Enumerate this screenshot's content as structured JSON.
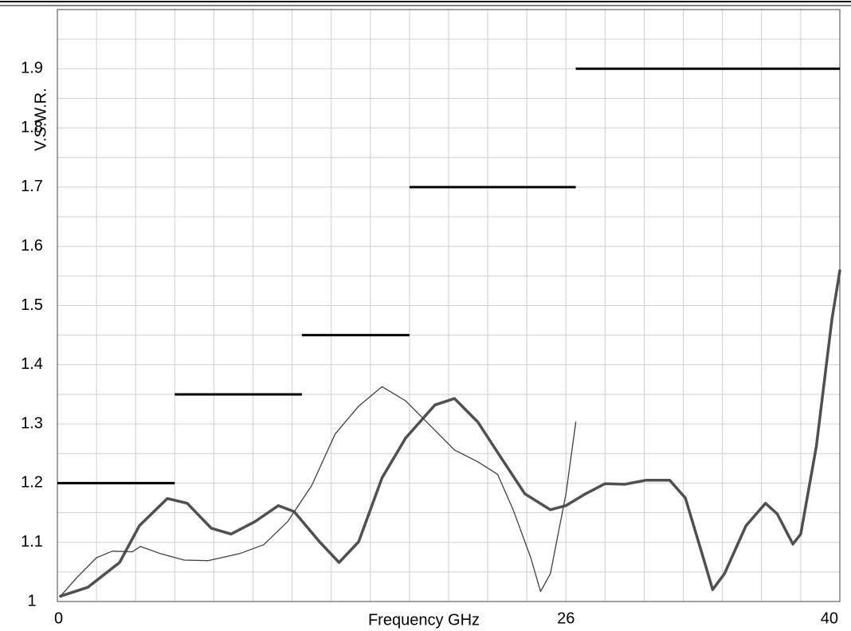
{
  "chart_data": {
    "type": "line",
    "x_label": "Frequency GHz",
    "y_label": "V.S.W.R.",
    "xlim": [
      0,
      40
    ],
    "xticks": [
      0,
      26,
      40
    ],
    "ylim": [
      1,
      2
    ],
    "yticks": [
      1,
      1.1,
      1.2,
      1.3,
      1.4,
      1.5,
      1.6,
      1.7,
      1.8,
      1.9
    ],
    "grid": true,
    "x_grid_step": 2,
    "y_grid_step": 0.05,
    "series": [
      {
        "color": "#505050",
        "width": 3.5,
        "x": [
          0.16,
          1.55,
          3.18,
          4.19,
          5.62,
          6.64,
          7.86,
          8.88,
          10.1,
          11.3,
          12.1,
          13.4,
          14.4,
          15.4,
          16.6,
          17.8,
          19.3,
          20.3,
          21.5,
          22.7,
          23.9,
          25.2,
          26.0,
          27.0,
          28.0,
          29.0,
          30.1,
          31.3,
          32.1,
          32.9,
          33.5,
          34.1,
          35.2,
          36.2,
          36.8,
          37.6,
          38.0,
          38.8,
          39.6,
          40
        ],
        "values": [
          1.009,
          1.024,
          1.066,
          1.128,
          1.174,
          1.166,
          1.124,
          1.114,
          1.135,
          1.162,
          1.152,
          1.101,
          1.066,
          1.101,
          1.209,
          1.276,
          1.332,
          1.343,
          1.303,
          1.242,
          1.182,
          1.155,
          1.162,
          1.182,
          1.199,
          1.198,
          1.205,
          1.205,
          1.175,
          1.087,
          1.02,
          1.047,
          1.128,
          1.166,
          1.148,
          1.097,
          1.114,
          1.262,
          1.478,
          1.559
        ]
      },
      {
        "color": "#404040",
        "width": 1.3,
        "x": [
          0.16,
          0.98,
          2.0,
          2.81,
          3.83,
          4.24,
          5.26,
          6.48,
          7.7,
          9.33,
          10.55,
          11.77,
          13.0,
          14.2,
          15.4,
          16.6,
          17.8,
          19.1,
          20.3,
          21.5,
          22.5,
          23.3,
          24.2,
          24.7,
          25.2,
          26.0,
          26.5
        ],
        "values": [
          1.009,
          1.04,
          1.074,
          1.085,
          1.084,
          1.093,
          1.081,
          1.07,
          1.069,
          1.081,
          1.096,
          1.135,
          1.196,
          1.283,
          1.33,
          1.363,
          1.339,
          1.296,
          1.256,
          1.236,
          1.215,
          1.155,
          1.074,
          1.017,
          1.047,
          1.182,
          1.303
        ]
      }
    ],
    "limits": {
      "color": "#000000",
      "width": 3,
      "segments": [
        {
          "x": [
            0,
            6
          ],
          "value": 1.2
        },
        {
          "x": [
            6,
            12.5
          ],
          "value": 1.35
        },
        {
          "x": [
            12.5,
            18
          ],
          "value": 1.45
        },
        {
          "x": [
            18,
            26.5
          ],
          "value": 1.7
        },
        {
          "x": [
            26.5,
            40
          ],
          "value": 1.9
        }
      ]
    }
  }
}
